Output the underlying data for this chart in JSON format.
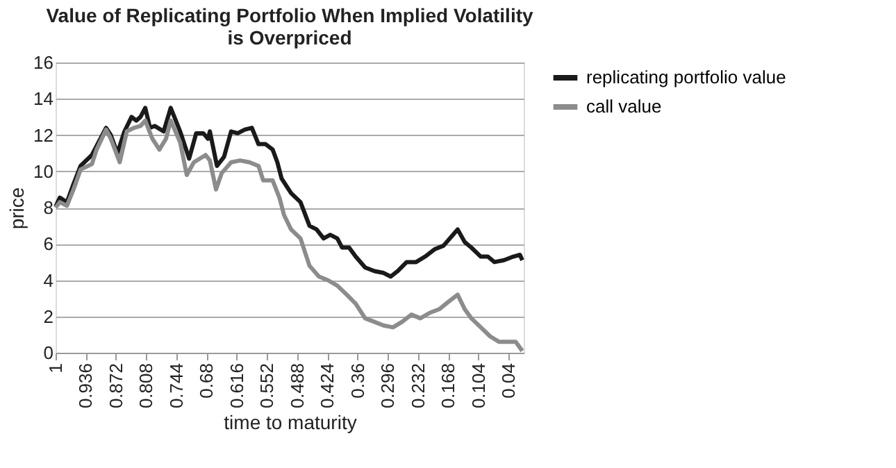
{
  "chart_data": {
    "type": "line",
    "title": [
      "Value of Replicating Portfolio When Implied Volatility",
      "is Overpriced"
    ],
    "xlabel": "time to maturity",
    "ylabel": "price",
    "xlim": [
      1,
      0.008
    ],
    "xticks": [
      1,
      0.936,
      0.872,
      0.808,
      0.744,
      0.68,
      0.616,
      0.552,
      0.488,
      0.424,
      0.36,
      0.296,
      0.232,
      0.168,
      0.104,
      0.04
    ],
    "ylim": [
      0,
      16
    ],
    "yticks": [
      0,
      2,
      4,
      6,
      8,
      10,
      12,
      14,
      16
    ],
    "grid": "y",
    "legend": "right",
    "line_style": "solid",
    "marker": "none",
    "series": [
      {
        "name": "replicating portfolio value",
        "color": "#1a1a1a",
        "x": [
          1,
          0.991,
          0.976,
          0.962,
          0.947,
          0.923,
          0.913,
          0.893,
          0.883,
          0.869,
          0.854,
          0.839,
          0.829,
          0.82,
          0.81,
          0.8,
          0.79,
          0.771,
          0.756,
          0.736,
          0.717,
          0.702,
          0.687,
          0.677,
          0.673,
          0.658,
          0.643,
          0.628,
          0.614,
          0.599,
          0.584,
          0.57,
          0.555,
          0.54,
          0.53,
          0.521,
          0.501,
          0.481,
          0.462,
          0.447,
          0.432,
          0.418,
          0.403,
          0.393,
          0.378,
          0.364,
          0.344,
          0.324,
          0.305,
          0.29,
          0.275,
          0.256,
          0.236,
          0.217,
          0.197,
          0.178,
          0.158,
          0.148,
          0.133,
          0.119,
          0.099,
          0.084,
          0.07,
          0.05,
          0.03,
          0.016,
          0.011
        ],
        "values": [
          8.05,
          8.55,
          8.3,
          9.3,
          10.3,
          10.9,
          11.4,
          12.4,
          12.0,
          11.0,
          12.2,
          13.0,
          12.8,
          13.0,
          13.5,
          12.4,
          12.5,
          12.2,
          13.5,
          12.2,
          10.7,
          12.1,
          12.1,
          11.8,
          12.2,
          10.3,
          10.8,
          12.2,
          12.1,
          12.3,
          12.4,
          11.5,
          11.5,
          11.2,
          10.5,
          9.6,
          8.8,
          8.3,
          7.0,
          6.8,
          6.3,
          6.5,
          6.3,
          5.8,
          5.8,
          5.3,
          4.7,
          4.5,
          4.4,
          4.2,
          4.5,
          5.0,
          5.0,
          5.3,
          5.7,
          5.9,
          6.5,
          6.8,
          6.1,
          5.8,
          5.3,
          5.3,
          5.0,
          5.1,
          5.3,
          5.4,
          5.1
        ]
      },
      {
        "name": "call value",
        "color": "#8c8c8c",
        "x": [
          1,
          0.991,
          0.976,
          0.962,
          0.947,
          0.923,
          0.913,
          0.893,
          0.883,
          0.864,
          0.849,
          0.834,
          0.82,
          0.81,
          0.795,
          0.78,
          0.766,
          0.756,
          0.736,
          0.722,
          0.707,
          0.682,
          0.673,
          0.66,
          0.648,
          0.628,
          0.609,
          0.589,
          0.57,
          0.56,
          0.54,
          0.525,
          0.516,
          0.501,
          0.481,
          0.462,
          0.442,
          0.423,
          0.403,
          0.383,
          0.364,
          0.344,
          0.324,
          0.305,
          0.285,
          0.266,
          0.246,
          0.227,
          0.207,
          0.187,
          0.168,
          0.148,
          0.133,
          0.119,
          0.099,
          0.079,
          0.06,
          0.04,
          0.025,
          0.011
        ],
        "values": [
          8.0,
          8.3,
          8.1,
          9.0,
          10.1,
          10.4,
          11.2,
          12.3,
          11.8,
          10.5,
          12.2,
          12.4,
          12.5,
          12.8,
          11.8,
          11.2,
          11.8,
          12.8,
          11.6,
          9.8,
          10.5,
          10.9,
          10.6,
          9.0,
          9.9,
          10.5,
          10.6,
          10.5,
          10.3,
          9.5,
          9.5,
          8.5,
          7.6,
          6.8,
          6.3,
          4.8,
          4.2,
          4.0,
          3.7,
          3.2,
          2.7,
          1.9,
          1.7,
          1.5,
          1.4,
          1.7,
          2.1,
          1.9,
          2.2,
          2.4,
          2.8,
          3.2,
          2.4,
          1.9,
          1.4,
          0.9,
          0.6,
          0.6,
          0.6,
          0.1
        ]
      }
    ]
  }
}
